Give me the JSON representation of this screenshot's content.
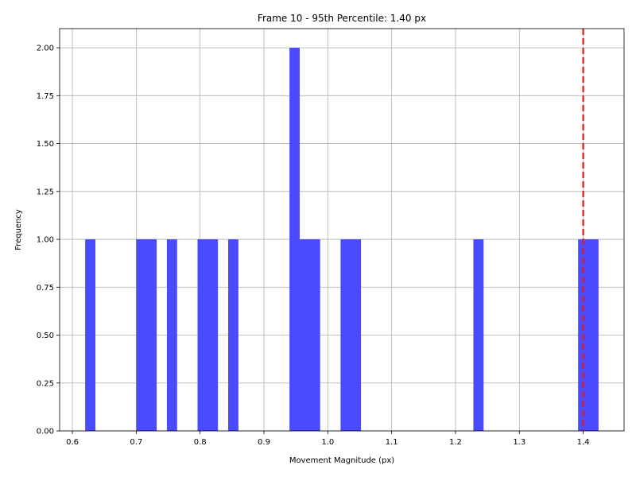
{
  "chart_data": {
    "type": "bar",
    "title": "Frame 10 - 95th Percentile: 1.40 px",
    "xlabel": "Movement Magnitude (px)",
    "ylabel": "Frequency",
    "xlim": [
      0.58,
      1.464
    ],
    "ylim": [
      0,
      2.1
    ],
    "x_ticks": [
      "0.6",
      "0.7",
      "0.8",
      "0.9",
      "1.0",
      "1.1",
      "1.2",
      "1.3",
      "1.4"
    ],
    "y_ticks": [
      "0.00",
      "0.25",
      "0.50",
      "0.75",
      "1.00",
      "1.25",
      "1.50",
      "1.75",
      "2.00"
    ],
    "bins": [
      {
        "x0": 0.62,
        "x1": 0.636,
        "count": 1
      },
      {
        "x0": 0.7,
        "x1": 0.732,
        "count": 1
      },
      {
        "x0": 0.748,
        "x1": 0.764,
        "count": 1
      },
      {
        "x0": 0.796,
        "x1": 0.828,
        "count": 1
      },
      {
        "x0": 0.844,
        "x1": 0.86,
        "count": 1
      },
      {
        "x0": 0.94,
        "x1": 0.956,
        "count": 2
      },
      {
        "x0": 0.956,
        "x1": 0.988,
        "count": 1
      },
      {
        "x0": 1.02,
        "x1": 1.052,
        "count": 1
      },
      {
        "x0": 1.228,
        "x1": 1.244,
        "count": 1
      },
      {
        "x0": 1.392,
        "x1": 1.424,
        "count": 1
      }
    ],
    "bar_color": "#4a4aff",
    "threshold": 1.4,
    "threshold_color": "#e01b1b",
    "grid": true
  }
}
